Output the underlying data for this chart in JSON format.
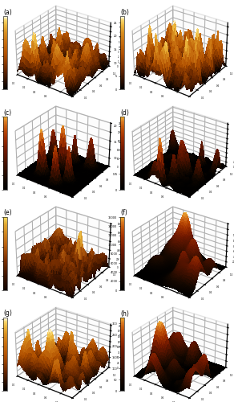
{
  "panels": [
    {
      "label": "(a)",
      "type": "rough_high",
      "cmin": 0,
      "cmax": 8.75,
      "color": "afm_hot",
      "seed": 10
    },
    {
      "label": "(b)",
      "type": "rough_medium",
      "cmin": 0,
      "cmax": 27.5,
      "color": "afm_hot",
      "seed": 20
    },
    {
      "label": "(c)",
      "type": "flat_sparse_bumps",
      "cmin": 0,
      "cmax": 250.0,
      "color": "afm_dark",
      "seed": 30
    },
    {
      "label": "(d)",
      "type": "sparse_tall_bumps",
      "cmin": 0,
      "cmax": 23.0,
      "color": "afm_dark",
      "seed": 40
    },
    {
      "label": "(e)",
      "type": "fiber_network",
      "cmin": 0,
      "cmax": 1000.0,
      "color": "afm_fiber",
      "seed": 50
    },
    {
      "label": "(f)",
      "type": "large_bumps_dark",
      "cmin": 0,
      "cmax": 16000.0,
      "color": "afm_dark2",
      "seed": 60
    },
    {
      "label": "(g)",
      "type": "medium_bumps",
      "cmin": 0,
      "cmax": 205.0,
      "color": "afm_hot",
      "seed": 70
    },
    {
      "label": "(h)",
      "type": "large_round_bumps",
      "cmin": 0,
      "cmax": 325.0,
      "color": "afm_dark2",
      "seed": 80
    }
  ],
  "nrows": 4,
  "ncols": 2,
  "figsize": [
    2.92,
    5.0
  ],
  "dpi": 100,
  "elev": 30,
  "azim": -55,
  "n_surface": 60,
  "label_fontsize": 5.5,
  "tick_labelsize": 2.0,
  "cb_tick_labelsize": 2.5,
  "colormap_hot": [
    [
      0.0,
      "#000000"
    ],
    [
      0.12,
      "#2b1000"
    ],
    [
      0.28,
      "#6b2800"
    ],
    [
      0.48,
      "#b05000"
    ],
    [
      0.65,
      "#c87010"
    ],
    [
      0.78,
      "#d89020"
    ],
    [
      0.88,
      "#ecb840"
    ],
    [
      0.95,
      "#f8d870"
    ],
    [
      1.0,
      "#ffffff"
    ]
  ],
  "colormap_dark": [
    [
      0.0,
      "#000000"
    ],
    [
      0.15,
      "#150800"
    ],
    [
      0.35,
      "#401000"
    ],
    [
      0.55,
      "#701800"
    ],
    [
      0.72,
      "#a03000"
    ],
    [
      0.84,
      "#c05008"
    ],
    [
      0.93,
      "#d87820"
    ],
    [
      0.98,
      "#e8a030"
    ],
    [
      1.0,
      "#f0b840"
    ]
  ],
  "colormap_fiber": [
    [
      0.0,
      "#100400"
    ],
    [
      0.2,
      "#3c1400"
    ],
    [
      0.42,
      "#7c3000"
    ],
    [
      0.62,
      "#b86010"
    ],
    [
      0.78,
      "#d08820"
    ],
    [
      0.9,
      "#e0a830"
    ],
    [
      0.97,
      "#f0cc50"
    ],
    [
      1.0,
      "#f8e070"
    ]
  ]
}
